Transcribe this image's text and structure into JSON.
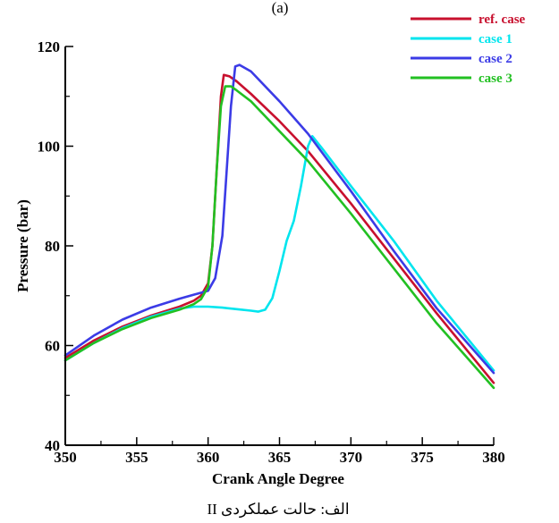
{
  "top_label": "(a)",
  "caption": "الف: حالت عملکردی II",
  "legend": [
    {
      "label": "ref. case",
      "color": "#c8102e"
    },
    {
      "label": "case 1",
      "color": "#00e5ee"
    },
    {
      "label": "case 2",
      "color": "#3b3be6"
    },
    {
      "label": "case 3",
      "color": "#22c022"
    }
  ],
  "chart_data": {
    "type": "line",
    "title": "",
    "xlabel": "Crank Angle Degree",
    "ylabel": "Pressure (bar)",
    "xlim": [
      350,
      380
    ],
    "ylim": [
      40,
      120
    ],
    "xticks": [
      350,
      355,
      360,
      365,
      370,
      375,
      380
    ],
    "yticks": [
      40,
      60,
      80,
      100,
      120
    ],
    "grid": false,
    "legend_position": "top-right",
    "series": [
      {
        "name": "ref. case",
        "color": "#c8102e",
        "x": [
          350,
          352,
          354,
          356,
          358,
          359,
          359.5,
          360,
          360.3,
          360.6,
          360.9,
          361.1,
          361.5,
          362,
          363,
          365,
          367,
          370,
          373,
          376,
          378,
          380
        ],
        "y": [
          57.5,
          61.0,
          63.8,
          66.0,
          67.8,
          69.0,
          70.0,
          72.5,
          80.0,
          95.0,
          110.0,
          114.3,
          114.0,
          113.0,
          110.5,
          105.0,
          99.0,
          88.5,
          77.5,
          66.5,
          59.5,
          52.5
        ]
      },
      {
        "name": "case 1",
        "color": "#00e5ee",
        "x": [
          350,
          352,
          354,
          356,
          358,
          359,
          360,
          361,
          362,
          363,
          363.5,
          364,
          364.5,
          365,
          365.5,
          366,
          366.5,
          367,
          367.3,
          368,
          370,
          373,
          376,
          378,
          380
        ],
        "y": [
          57.0,
          60.5,
          63.5,
          65.8,
          67.4,
          67.8,
          67.8,
          67.6,
          67.3,
          67.0,
          66.8,
          67.2,
          69.5,
          75.0,
          81.0,
          85.0,
          92.0,
          100.0,
          102.0,
          99.5,
          92.0,
          81.0,
          69.0,
          62.0,
          55.0
        ]
      },
      {
        "name": "case 2",
        "color": "#3b3be6",
        "x": [
          350,
          352,
          354,
          356,
          358,
          359,
          360,
          360.5,
          361,
          361.3,
          361.6,
          361.9,
          362.2,
          363,
          365,
          367,
          370,
          373,
          376,
          378,
          380
        ],
        "y": [
          58.0,
          62.0,
          65.2,
          67.6,
          69.4,
          70.2,
          71.0,
          73.5,
          82.0,
          95.0,
          108.0,
          116.0,
          116.3,
          115.0,
          109.0,
          102.5,
          91.0,
          79.0,
          67.5,
          61.0,
          54.5
        ]
      },
      {
        "name": "case 3",
        "color": "#22c022",
        "x": [
          350,
          352,
          354,
          356,
          358,
          359,
          359.5,
          360,
          360.3,
          360.6,
          360.9,
          361.2,
          361.6,
          362,
          363,
          365,
          367,
          370,
          373,
          376,
          378,
          380
        ],
        "y": [
          57.0,
          60.5,
          63.3,
          65.5,
          67.2,
          68.3,
          69.3,
          71.8,
          80.0,
          95.0,
          108.0,
          112.0,
          112.0,
          111.2,
          109.0,
          103.0,
          97.0,
          86.5,
          75.5,
          64.5,
          58.0,
          51.5
        ]
      }
    ]
  }
}
